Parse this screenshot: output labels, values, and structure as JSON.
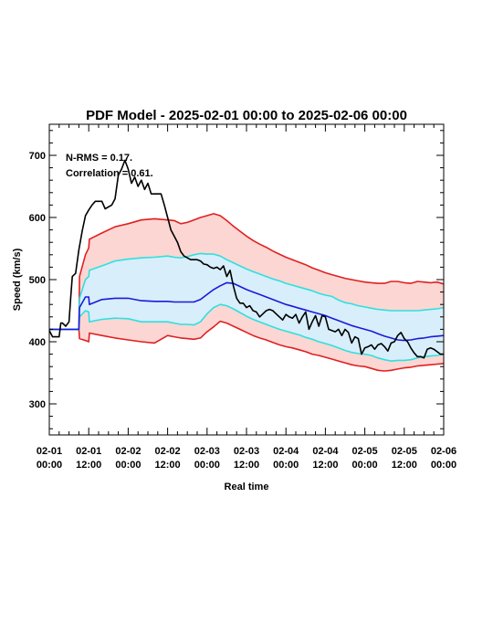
{
  "chart_data": {
    "type": "line",
    "title": "PDF Model - 2025-02-01 00:00 to 2025-02-06 00:00",
    "xlabel": "Real time",
    "ylabel": "Speed (km/s)",
    "xlim": [
      0,
      120
    ],
    "ylim": [
      250,
      750
    ],
    "x_unit": "hours since 2025-02-01 00:00",
    "x_ticks": [
      {
        "x": 0,
        "label1": "02-01",
        "label2": "00:00"
      },
      {
        "x": 12,
        "label1": "02-01",
        "label2": "12:00"
      },
      {
        "x": 24,
        "label1": "02-02",
        "label2": "00:00"
      },
      {
        "x": 36,
        "label1": "02-02",
        "label2": "12:00"
      },
      {
        "x": 48,
        "label1": "02-03",
        "label2": "00:00"
      },
      {
        "x": 60,
        "label1": "02-03",
        "label2": "12:00"
      },
      {
        "x": 72,
        "label1": "02-04",
        "label2": "00:00"
      },
      {
        "x": 84,
        "label1": "02-04",
        "label2": "12:00"
      },
      {
        "x": 96,
        "label1": "02-05",
        "label2": "00:00"
      },
      {
        "x": 108,
        "label1": "02-05",
        "label2": "12:00"
      },
      {
        "x": 120,
        "label1": "02-06",
        "label2": "00:00"
      }
    ],
    "y_ticks": [
      300,
      400,
      500,
      600,
      700
    ],
    "annotations": [
      "N-RMS = 0.17.",
      "Correlation = 0.61."
    ],
    "colors": {
      "observed": "#000000",
      "median": "#1a1adc",
      "inner": "#2ee0e0",
      "outer": "#e02020",
      "outer_fill": "#fcd6d2",
      "inner_fill": "#d8eefa"
    },
    "series": [
      {
        "role": "outer_upper",
        "x": [
          0,
          4,
          8,
          9,
          9.2,
          11,
          12,
          12.2,
          16,
          20,
          24,
          28,
          32,
          36,
          38,
          40,
          42,
          44,
          46,
          48,
          50,
          52,
          54,
          56,
          58,
          60,
          62,
          64,
          66,
          68,
          70,
          72,
          74,
          76,
          78,
          80,
          82,
          84,
          86,
          88,
          90,
          92,
          94,
          96,
          98,
          100,
          102,
          104,
          106,
          108,
          110,
          112,
          114,
          116,
          118,
          120
        ],
        "values": [
          420,
          420,
          420,
          420,
          505,
          540,
          551,
          565,
          575,
          585,
          590,
          596,
          598,
          596,
          595,
          590,
          592,
          596,
          600,
          603,
          606,
          603,
          595,
          586,
          578,
          570,
          563,
          557,
          552,
          546,
          541,
          536,
          532,
          528,
          524,
          519,
          515,
          511,
          508,
          505,
          502,
          500,
          498,
          496,
          495,
          494,
          494,
          497,
          497,
          495,
          494,
          497,
          496,
          495,
          496,
          493
        ]
      },
      {
        "role": "inner_upper",
        "x": [
          0,
          4,
          8,
          9,
          9.2,
          11,
          12,
          12.2,
          16,
          20,
          24,
          28,
          32,
          36,
          38,
          40,
          42,
          44,
          46,
          48,
          50,
          52,
          54,
          56,
          58,
          60,
          62,
          64,
          66,
          68,
          70,
          72,
          74,
          76,
          78,
          80,
          82,
          84,
          86,
          88,
          90,
          92,
          94,
          96,
          98,
          100,
          102,
          104,
          106,
          108,
          110,
          112,
          114,
          116,
          118,
          120
        ],
        "values": [
          420,
          420,
          420,
          420,
          470,
          500,
          505,
          515,
          522,
          530,
          533,
          535,
          536,
          538,
          536,
          535,
          537,
          540,
          542,
          541,
          541,
          538,
          532,
          527,
          522,
          517,
          513,
          509,
          505,
          501,
          498,
          494,
          491,
          488,
          485,
          482,
          478,
          475,
          473,
          467,
          463,
          461,
          458,
          456,
          454,
          452,
          451,
          450,
          450,
          450,
          450,
          450,
          451,
          452,
          453,
          455
        ]
      },
      {
        "role": "median",
        "x": [
          0,
          4,
          8,
          9,
          9.2,
          11,
          12,
          12.2,
          16,
          20,
          24,
          28,
          32,
          36,
          38,
          40,
          42,
          44,
          46,
          48,
          50,
          52,
          54,
          56,
          58,
          60,
          62,
          64,
          66,
          68,
          70,
          72,
          74,
          76,
          78,
          80,
          82,
          84,
          86,
          88,
          90,
          92,
          94,
          96,
          98,
          100,
          102,
          104,
          106,
          108,
          110,
          112,
          114,
          116,
          118,
          120
        ],
        "values": [
          420,
          420,
          420,
          420,
          455,
          472,
          472,
          460,
          468,
          470,
          470,
          466,
          465,
          465,
          464,
          464,
          464,
          464,
          468,
          476,
          484,
          490,
          495,
          494,
          489,
          484,
          480,
          476,
          472,
          468,
          464,
          460,
          457,
          454,
          451,
          448,
          445,
          442,
          438,
          434,
          430,
          426,
          423,
          420,
          417,
          413,
          409,
          406,
          403,
          402,
          403,
          405,
          406,
          408,
          409,
          410
        ]
      },
      {
        "role": "inner_lower",
        "x": [
          0,
          4,
          8,
          9,
          9.2,
          11,
          12,
          12.2,
          16,
          20,
          24,
          28,
          32,
          36,
          38,
          40,
          42,
          44,
          46,
          48,
          50,
          52,
          54,
          56,
          58,
          60,
          62,
          64,
          66,
          68,
          70,
          72,
          74,
          76,
          78,
          80,
          82,
          84,
          86,
          88,
          90,
          92,
          94,
          96,
          98,
          100,
          102,
          104,
          106,
          108,
          110,
          112,
          114,
          116,
          118,
          120
        ],
        "values": [
          420,
          420,
          420,
          420,
          440,
          450,
          448,
          432,
          436,
          438,
          437,
          432,
          432,
          432,
          430,
          428,
          428,
          427,
          432,
          445,
          455,
          460,
          458,
          453,
          447,
          441,
          436,
          432,
          428,
          424,
          420,
          417,
          414,
          411,
          407,
          404,
          400,
          397,
          394,
          390,
          386,
          383,
          381,
          380,
          378,
          374,
          371,
          369,
          370,
          370,
          371,
          374,
          376,
          377,
          378,
          380
        ]
      },
      {
        "role": "outer_lower",
        "x": [
          0,
          4,
          8,
          9,
          9.2,
          11,
          12,
          12.2,
          16,
          20,
          24,
          28,
          32,
          36,
          38,
          40,
          42,
          44,
          46,
          48,
          50,
          52,
          54,
          56,
          58,
          60,
          62,
          64,
          66,
          68,
          70,
          72,
          74,
          76,
          78,
          80,
          82,
          84,
          86,
          88,
          90,
          92,
          94,
          96,
          98,
          100,
          102,
          104,
          106,
          108,
          110,
          112,
          114,
          116,
          118,
          120
        ],
        "values": [
          420,
          420,
          420,
          420,
          405,
          402,
          400,
          414,
          410,
          406,
          403,
          400,
          398,
          410,
          408,
          406,
          405,
          404,
          406,
          416,
          424,
          433,
          430,
          425,
          420,
          415,
          410,
          406,
          403,
          399,
          395,
          392,
          390,
          387,
          384,
          380,
          378,
          375,
          372,
          369,
          366,
          363,
          361,
          360,
          357,
          354,
          353,
          354,
          356,
          358,
          359,
          361,
          362,
          363,
          364,
          365
        ]
      },
      {
        "role": "observed",
        "x": [
          0,
          1,
          2,
          3,
          3.5,
          4,
          5,
          6,
          6.5,
          7,
          8,
          9,
          10,
          11,
          12,
          13,
          14,
          15,
          16,
          17,
          18,
          19,
          20,
          21,
          22,
          23,
          24,
          25,
          26,
          27,
          28,
          29,
          30,
          31,
          32,
          33,
          34,
          35,
          36,
          37,
          38,
          39,
          40,
          41,
          42,
          43,
          44,
          45,
          46,
          47,
          48,
          49,
          50,
          51,
          52,
          53,
          54,
          55,
          56,
          57,
          58,
          59,
          60,
          61,
          62,
          63,
          64,
          65,
          66,
          67,
          68,
          69,
          70,
          71,
          72,
          73,
          74,
          75,
          76,
          77,
          78,
          79,
          80,
          81,
          82,
          83,
          84,
          85,
          86,
          87,
          88,
          89,
          90,
          91,
          92,
          93,
          94,
          95,
          96,
          97,
          98,
          99,
          100,
          101,
          102,
          103,
          104,
          105,
          106,
          107,
          108,
          109,
          110,
          111,
          112,
          113,
          114,
          115,
          116,
          117,
          118,
          119,
          120
        ],
        "values": [
          418,
          408,
          408,
          408,
          430,
          430,
          425,
          432,
          470,
          505,
          510,
          548,
          578,
          603,
          612,
          620,
          626,
          626,
          626,
          614,
          617,
          620,
          630,
          668,
          678,
          692,
          678,
          655,
          665,
          650,
          660,
          645,
          655,
          638,
          638,
          638,
          638,
          620,
          600,
          580,
          570,
          560,
          545,
          538,
          535,
          532,
          532,
          532,
          530,
          525,
          524,
          520,
          518,
          520,
          516,
          522,
          505,
          515,
          490,
          470,
          462,
          462,
          455,
          458,
          450,
          448,
          440,
          445,
          450,
          452,
          450,
          445,
          440,
          435,
          444,
          440,
          438,
          444,
          430,
          440,
          448,
          420,
          432,
          442,
          425,
          442,
          440,
          420,
          418,
          416,
          420,
          410,
          420,
          415,
          398,
          408,
          405,
          380,
          390,
          392,
          395,
          388,
          395,
          397,
          392,
          385,
          398,
          400,
          410,
          415,
          405,
          400,
          390,
          382,
          376,
          376,
          374,
          388,
          390,
          388,
          384,
          380,
          380
        ]
      }
    ]
  }
}
